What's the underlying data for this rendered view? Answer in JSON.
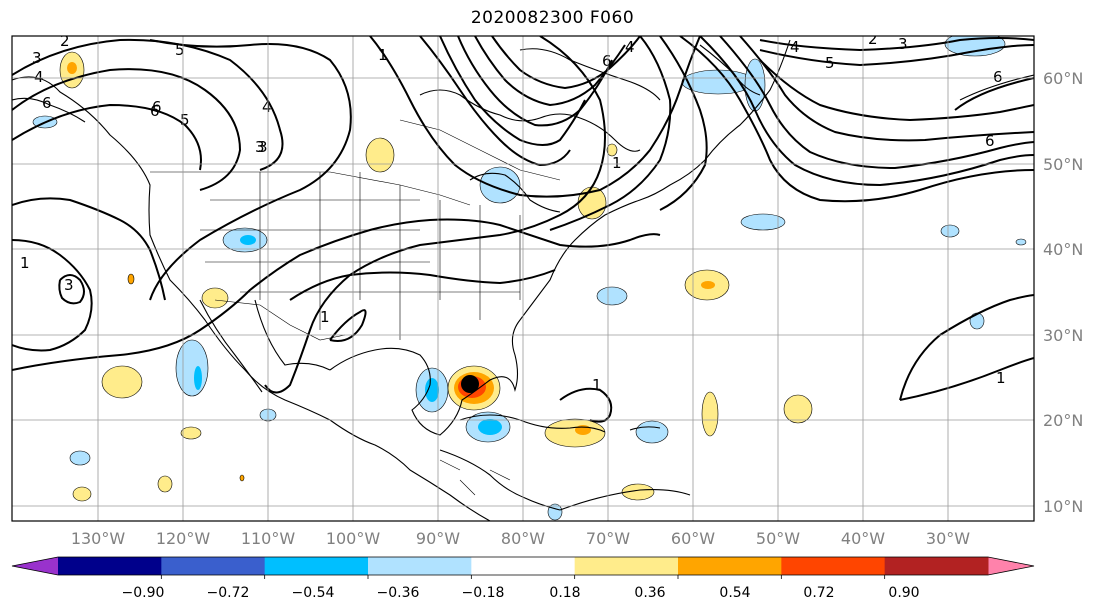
{
  "title": "2020082300 F060",
  "lon_labels": [
    "130°W",
    "120°W",
    "110°W",
    "100°W",
    "90°W",
    "80°W",
    "70°W",
    "60°W",
    "50°W",
    "40°W",
    "30°W"
  ],
  "lat_labels": [
    "60°N",
    "50°N",
    "40°N",
    "30°N",
    "20°N",
    "10°N"
  ],
  "colorbar": {
    "colors": [
      "#9932cc",
      "#00008b",
      "#3a5fcd",
      "#00bfff",
      "#b0e2ff",
      "#ffffff",
      "#ffec8b",
      "#ffa500",
      "#ff4500",
      "#b22222",
      "#ff82ab"
    ],
    "tick_labels": [
      "−0.90",
      "−0.72",
      "−0.54",
      "−0.36",
      "−0.18",
      "0.18",
      "0.36",
      "0.54",
      "0.72",
      "0.90"
    ]
  },
  "contour_labels": [
    "2",
    "3",
    "4",
    "5",
    "6",
    "3",
    "6",
    "1",
    "1",
    "1",
    "6",
    "4",
    "4",
    "5",
    "3",
    "2",
    "3",
    "4",
    "5",
    "6",
    "6",
    "6",
    "1",
    "1",
    "3",
    "1",
    "1",
    "1",
    "1",
    "1"
  ]
}
